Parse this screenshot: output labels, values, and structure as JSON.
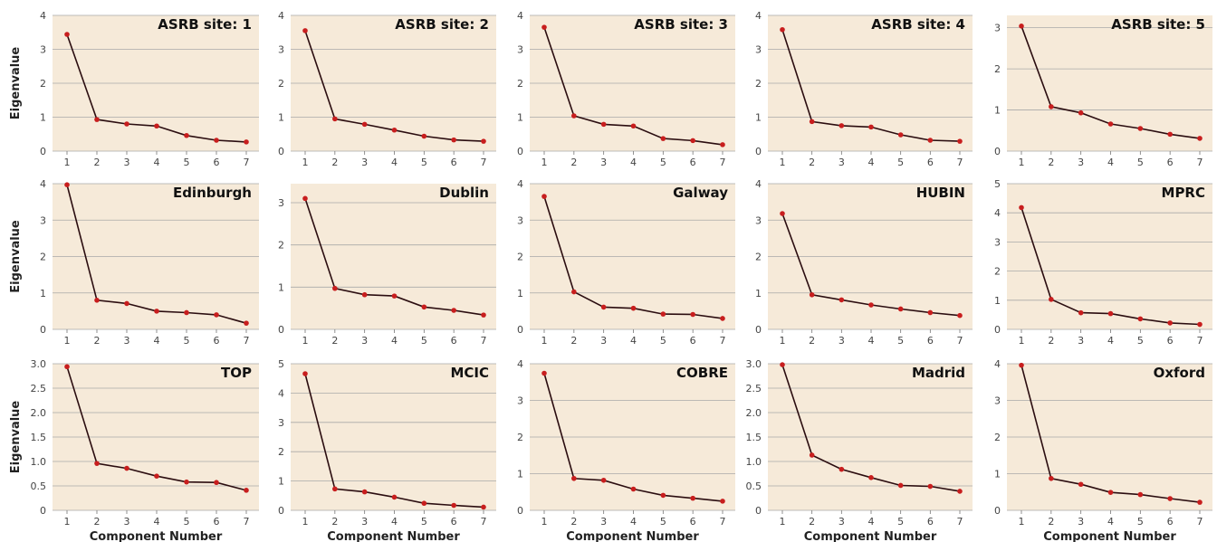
{
  "figure": {
    "ylabel": "Eigenvalue",
    "xlabel": "Component Number",
    "background_color": "#f6ead9",
    "grid_color": "#a9a9a9",
    "line_color": "#2b0d10",
    "point_color": "#c81e1e"
  },
  "chart_data": [
    {
      "type": "line",
      "title": "ASRB site: 1",
      "x": [
        1,
        2,
        3,
        4,
        5,
        6,
        7
      ],
      "series": [
        {
          "values": [
            3.44,
            0.93,
            0.8,
            0.74,
            0.46,
            0.32,
            0.27
          ]
        }
      ],
      "ylim": [
        0,
        4
      ],
      "yticks": [
        {
          "v": 0,
          "label": "0"
        },
        {
          "v": 1,
          "label": "1"
        },
        {
          "v": 2,
          "label": "2"
        },
        {
          "v": 3,
          "label": "3"
        },
        {
          "v": 4,
          "label": "4"
        }
      ],
      "grid": true
    },
    {
      "type": "line",
      "title": "ASRB site: 2",
      "x": [
        1,
        2,
        3,
        4,
        5,
        6,
        7
      ],
      "series": [
        {
          "values": [
            3.55,
            0.95,
            0.79,
            0.62,
            0.44,
            0.33,
            0.29
          ]
        }
      ],
      "ylim": [
        0,
        4
      ],
      "yticks": [
        {
          "v": 0,
          "label": "0"
        },
        {
          "v": 1,
          "label": "1"
        },
        {
          "v": 2,
          "label": "2"
        },
        {
          "v": 3,
          "label": "3"
        },
        {
          "v": 4,
          "label": "4"
        }
      ],
      "grid": true
    },
    {
      "type": "line",
      "title": "ASRB site: 3",
      "x": [
        1,
        2,
        3,
        4,
        5,
        6,
        7
      ],
      "series": [
        {
          "values": [
            3.65,
            1.04,
            0.79,
            0.74,
            0.37,
            0.31,
            0.19
          ]
        }
      ],
      "ylim": [
        0,
        4
      ],
      "yticks": [
        {
          "v": 0,
          "label": "0"
        },
        {
          "v": 1,
          "label": "1"
        },
        {
          "v": 2,
          "label": "2"
        },
        {
          "v": 3,
          "label": "3"
        },
        {
          "v": 4,
          "label": "4"
        }
      ],
      "grid": true
    },
    {
      "type": "line",
      "title": "ASRB site: 4",
      "x": [
        1,
        2,
        3,
        4,
        5,
        6,
        7
      ],
      "series": [
        {
          "values": [
            3.58,
            0.87,
            0.75,
            0.71,
            0.48,
            0.32,
            0.29
          ]
        }
      ],
      "ylim": [
        0,
        4
      ],
      "yticks": [
        {
          "v": 0,
          "label": "0"
        },
        {
          "v": 1,
          "label": "1"
        },
        {
          "v": 2,
          "label": "2"
        },
        {
          "v": 3,
          "label": "3"
        },
        {
          "v": 4,
          "label": "4"
        }
      ],
      "grid": true
    },
    {
      "type": "line",
      "title": "ASRB site: 5",
      "x": [
        1,
        2,
        3,
        4,
        5,
        6,
        7
      ],
      "series": [
        {
          "values": [
            3.04,
            1.08,
            0.93,
            0.66,
            0.55,
            0.41,
            0.31
          ]
        }
      ],
      "ylim": [
        0,
        3.3
      ],
      "yticks": [
        {
          "v": 0,
          "label": "0"
        },
        {
          "v": 1,
          "label": "1"
        },
        {
          "v": 2,
          "label": "2"
        },
        {
          "v": 3,
          "label": "3"
        }
      ],
      "grid": true
    },
    {
      "type": "line",
      "title": "Edinburgh",
      "x": [
        1,
        2,
        3,
        4,
        5,
        6,
        7
      ],
      "series": [
        {
          "values": [
            3.97,
            0.8,
            0.71,
            0.5,
            0.46,
            0.4,
            0.17
          ]
        }
      ],
      "ylim": [
        0,
        4
      ],
      "yticks": [
        {
          "v": 0,
          "label": "0"
        },
        {
          "v": 1,
          "label": "1"
        },
        {
          "v": 2,
          "label": "2"
        },
        {
          "v": 3,
          "label": "3"
        },
        {
          "v": 4,
          "label": "4"
        }
      ],
      "grid": true
    },
    {
      "type": "line",
      "title": "Dublin",
      "x": [
        1,
        2,
        3,
        4,
        5,
        6,
        7
      ],
      "series": [
        {
          "values": [
            3.1,
            0.97,
            0.82,
            0.79,
            0.53,
            0.45,
            0.34
          ]
        }
      ],
      "ylim": [
        0,
        3.45
      ],
      "yticks": [
        {
          "v": 0,
          "label": "0"
        },
        {
          "v": 1,
          "label": "1"
        },
        {
          "v": 2,
          "label": "2"
        },
        {
          "v": 3,
          "label": "3"
        }
      ],
      "grid": true
    },
    {
      "type": "line",
      "title": "Galway",
      "x": [
        1,
        2,
        3,
        4,
        5,
        6,
        7
      ],
      "series": [
        {
          "values": [
            3.65,
            1.03,
            0.61,
            0.58,
            0.42,
            0.41,
            0.3
          ]
        }
      ],
      "ylim": [
        0,
        4
      ],
      "yticks": [
        {
          "v": 0,
          "label": "0"
        },
        {
          "v": 1,
          "label": "1"
        },
        {
          "v": 2,
          "label": "2"
        },
        {
          "v": 3,
          "label": "3"
        },
        {
          "v": 4,
          "label": "4"
        }
      ],
      "grid": true
    },
    {
      "type": "line",
      "title": "HUBIN",
      "x": [
        1,
        2,
        3,
        4,
        5,
        6,
        7
      ],
      "series": [
        {
          "values": [
            3.18,
            0.95,
            0.81,
            0.67,
            0.56,
            0.46,
            0.38
          ]
        }
      ],
      "ylim": [
        0,
        4
      ],
      "yticks": [
        {
          "v": 0,
          "label": "0"
        },
        {
          "v": 1,
          "label": "1"
        },
        {
          "v": 2,
          "label": "2"
        },
        {
          "v": 3,
          "label": "3"
        },
        {
          "v": 4,
          "label": "4"
        }
      ],
      "grid": true
    },
    {
      "type": "line",
      "title": "MPRC",
      "x": [
        1,
        2,
        3,
        4,
        5,
        6,
        7
      ],
      "series": [
        {
          "values": [
            4.18,
            1.03,
            0.57,
            0.54,
            0.36,
            0.22,
            0.17
          ]
        }
      ],
      "ylim": [
        0,
        5
      ],
      "yticks": [
        {
          "v": 0,
          "label": "0"
        },
        {
          "v": 1,
          "label": "1"
        },
        {
          "v": 2,
          "label": "2"
        },
        {
          "v": 3,
          "label": "3"
        },
        {
          "v": 4,
          "label": "4"
        },
        {
          "v": 5,
          "label": "5"
        }
      ],
      "grid": true
    },
    {
      "type": "line",
      "title": "TOP",
      "x": [
        1,
        2,
        3,
        4,
        5,
        6,
        7
      ],
      "series": [
        {
          "values": [
            2.94,
            0.96,
            0.86,
            0.7,
            0.58,
            0.57,
            0.41
          ]
        }
      ],
      "ylim": [
        0,
        3.0
      ],
      "yticks": [
        {
          "v": 0,
          "label": "0"
        },
        {
          "v": 0.5,
          "label": "0.5"
        },
        {
          "v": 1,
          "label": "1.0"
        },
        {
          "v": 1.5,
          "label": "1.5"
        },
        {
          "v": 2,
          "label": "2.0"
        },
        {
          "v": 2.5,
          "label": "2.5"
        },
        {
          "v": 3,
          "label": "3.0"
        }
      ],
      "grid": true
    },
    {
      "type": "line",
      "title": "MCIC",
      "x": [
        1,
        2,
        3,
        4,
        5,
        6,
        7
      ],
      "series": [
        {
          "values": [
            4.66,
            0.73,
            0.63,
            0.45,
            0.24,
            0.17,
            0.11
          ]
        }
      ],
      "ylim": [
        0,
        5
      ],
      "yticks": [
        {
          "v": 0,
          "label": "0"
        },
        {
          "v": 1,
          "label": "1"
        },
        {
          "v": 2,
          "label": "2"
        },
        {
          "v": 3,
          "label": "3"
        },
        {
          "v": 4,
          "label": "4"
        },
        {
          "v": 5,
          "label": "5"
        }
      ],
      "grid": true
    },
    {
      "type": "line",
      "title": "COBRE",
      "x": [
        1,
        2,
        3,
        4,
        5,
        6,
        7
      ],
      "series": [
        {
          "values": [
            3.74,
            0.87,
            0.82,
            0.58,
            0.41,
            0.33,
            0.25
          ]
        }
      ],
      "ylim": [
        0,
        4
      ],
      "yticks": [
        {
          "v": 0,
          "label": "0"
        },
        {
          "v": 1,
          "label": "1"
        },
        {
          "v": 2,
          "label": "2"
        },
        {
          "v": 3,
          "label": "3"
        },
        {
          "v": 4,
          "label": "4"
        }
      ],
      "grid": true
    },
    {
      "type": "line",
      "title": "Madrid",
      "x": [
        1,
        2,
        3,
        4,
        5,
        6,
        7
      ],
      "series": [
        {
          "values": [
            2.98,
            1.13,
            0.84,
            0.67,
            0.51,
            0.49,
            0.39
          ]
        }
      ],
      "ylim": [
        0,
        3.0
      ],
      "yticks": [
        {
          "v": 0,
          "label": "0"
        },
        {
          "v": 0.5,
          "label": "0.5"
        },
        {
          "v": 1,
          "label": "1.0"
        },
        {
          "v": 1.5,
          "label": "1.5"
        },
        {
          "v": 2,
          "label": "2.0"
        },
        {
          "v": 2.5,
          "label": "2.5"
        },
        {
          "v": 3,
          "label": "3.0"
        }
      ],
      "grid": true
    },
    {
      "type": "line",
      "title": "Oxford",
      "x": [
        1,
        2,
        3,
        4,
        5,
        6,
        7
      ],
      "series": [
        {
          "values": [
            3.96,
            0.87,
            0.71,
            0.49,
            0.43,
            0.32,
            0.22
          ]
        }
      ],
      "ylim": [
        0,
        4
      ],
      "yticks": [
        {
          "v": 0,
          "label": "0"
        },
        {
          "v": 1,
          "label": "1"
        },
        {
          "v": 2,
          "label": "2"
        },
        {
          "v": 3,
          "label": "3"
        },
        {
          "v": 4,
          "label": "4"
        }
      ],
      "grid": true
    }
  ]
}
